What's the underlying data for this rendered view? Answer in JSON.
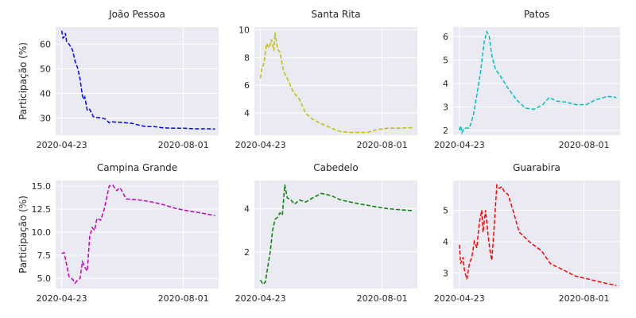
{
  "chart_data": [
    {
      "type": "line",
      "title": "João Pessoa",
      "ylabel": "Participação (%)",
      "color": "#0000ff",
      "xticks": [
        "2020-04-23",
        "2020-08-01"
      ],
      "yticks": [
        30,
        40,
        50,
        60
      ],
      "xlim": [
        "2020-04-18",
        "2020-08-30"
      ],
      "ylim": [
        23,
        67
      ],
      "grid": true,
      "points": [
        [
          "2020-04-23",
          65.5
        ],
        [
          "2020-04-24",
          62.5
        ],
        [
          "2020-04-25",
          63.0
        ],
        [
          "2020-04-26",
          64.5
        ],
        [
          "2020-04-27",
          61.0
        ],
        [
          "2020-04-29",
          60.0
        ],
        [
          "2020-05-01",
          58.5
        ],
        [
          "2020-05-02",
          57.5
        ],
        [
          "2020-05-04",
          53.0
        ],
        [
          "2020-05-06",
          50.5
        ],
        [
          "2020-05-08",
          46.0
        ],
        [
          "2020-05-10",
          39.0
        ],
        [
          "2020-05-11",
          37.5
        ],
        [
          "2020-05-12",
          38.5
        ],
        [
          "2020-05-14",
          33.0
        ],
        [
          "2020-05-16",
          33.5
        ],
        [
          "2020-05-19",
          30.5
        ],
        [
          "2020-05-22",
          30.2
        ],
        [
          "2020-05-26",
          30.0
        ],
        [
          "2020-05-29",
          29.5
        ],
        [
          "2020-06-01",
          28.0
        ],
        [
          "2020-06-03",
          28.5
        ],
        [
          "2020-06-06",
          28.3
        ],
        [
          "2020-06-10",
          28.2
        ],
        [
          "2020-06-15",
          28.0
        ],
        [
          "2020-06-20",
          27.8
        ],
        [
          "2020-06-26",
          27.0
        ],
        [
          "2020-07-01",
          26.5
        ],
        [
          "2020-07-08",
          26.5
        ],
        [
          "2020-07-15",
          26.0
        ],
        [
          "2020-07-22",
          25.8
        ],
        [
          "2020-08-01",
          25.8
        ],
        [
          "2020-08-10",
          25.6
        ],
        [
          "2020-08-20",
          25.6
        ],
        [
          "2020-08-27",
          25.5
        ]
      ]
    },
    {
      "type": "line",
      "title": "Santa Rita",
      "ylabel": "",
      "color": "#bfbf00",
      "xticks": [
        "2020-04-23",
        "2020-08-01"
      ],
      "yticks": [
        4,
        6,
        8,
        10
      ],
      "xlim": [
        "2020-04-18",
        "2020-08-30"
      ],
      "ylim": [
        2.4,
        10.2
      ],
      "grid": true,
      "points": [
        [
          "2020-04-23",
          6.5
        ],
        [
          "2020-04-24",
          7.2
        ],
        [
          "2020-04-26",
          7.6
        ],
        [
          "2020-04-28",
          9.0
        ],
        [
          "2020-04-30",
          8.7
        ],
        [
          "2020-05-02",
          9.3
        ],
        [
          "2020-05-04",
          8.5
        ],
        [
          "2020-05-05",
          9.8
        ],
        [
          "2020-05-07",
          8.6
        ],
        [
          "2020-05-09",
          8.4
        ],
        [
          "2020-05-12",
          7.0
        ],
        [
          "2020-05-15",
          6.5
        ],
        [
          "2020-05-20",
          5.5
        ],
        [
          "2020-05-25",
          5.0
        ],
        [
          "2020-05-30",
          4.0
        ],
        [
          "2020-06-04",
          3.6
        ],
        [
          "2020-06-10",
          3.3
        ],
        [
          "2020-06-18",
          3.0
        ],
        [
          "2020-06-26",
          2.7
        ],
        [
          "2020-07-04",
          2.6
        ],
        [
          "2020-07-12",
          2.6
        ],
        [
          "2020-07-20",
          2.6
        ],
        [
          "2020-07-28",
          2.8
        ],
        [
          "2020-08-05",
          2.9
        ],
        [
          "2020-08-15",
          2.9
        ],
        [
          "2020-08-27",
          2.95
        ]
      ]
    },
    {
      "type": "line",
      "title": "Patos",
      "ylabel": "",
      "color": "#00bfbf",
      "xticks": [
        "2020-04-23",
        "2020-08-01"
      ],
      "yticks": [
        2,
        3,
        4,
        5,
        6
      ],
      "xlim": [
        "2020-04-18",
        "2020-08-30"
      ],
      "ylim": [
        1.8,
        6.4
      ],
      "grid": true,
      "points": [
        [
          "2020-04-23",
          2.0
        ],
        [
          "2020-04-24",
          2.2
        ],
        [
          "2020-04-25",
          1.9
        ],
        [
          "2020-04-27",
          2.1
        ],
        [
          "2020-05-01",
          2.1
        ],
        [
          "2020-05-04",
          2.6
        ],
        [
          "2020-05-07",
          3.5
        ],
        [
          "2020-05-10",
          4.5
        ],
        [
          "2020-05-13",
          5.8
        ],
        [
          "2020-05-15",
          6.2
        ],
        [
          "2020-05-17",
          6.0
        ],
        [
          "2020-05-19",
          5.2
        ],
        [
          "2020-05-22",
          4.6
        ],
        [
          "2020-05-26",
          4.3
        ],
        [
          "2020-06-01",
          3.8
        ],
        [
          "2020-06-08",
          3.3
        ],
        [
          "2020-06-15",
          2.95
        ],
        [
          "2020-06-22",
          2.9
        ],
        [
          "2020-06-29",
          3.1
        ],
        [
          "2020-07-04",
          3.4
        ],
        [
          "2020-07-10",
          3.25
        ],
        [
          "2020-07-18",
          3.2
        ],
        [
          "2020-07-26",
          3.1
        ],
        [
          "2020-08-03",
          3.1
        ],
        [
          "2020-08-10",
          3.3
        ],
        [
          "2020-08-20",
          3.45
        ],
        [
          "2020-08-27",
          3.4
        ]
      ]
    },
    {
      "type": "line",
      "title": "Campina Grande",
      "ylabel": "Participação (%)",
      "color": "#bf00bf",
      "xticks": [
        "2020-04-23",
        "2020-08-01"
      ],
      "yticks": [
        5.0,
        7.5,
        10.0,
        12.5,
        15.0
      ],
      "ytick_labels": [
        "5.0",
        "7.5",
        "10.0",
        "12.5",
        "15.0"
      ],
      "xlim": [
        "2020-04-18",
        "2020-08-30"
      ],
      "ylim": [
        3.9,
        15.6
      ],
      "grid": true,
      "points": [
        [
          "2020-04-23",
          7.7
        ],
        [
          "2020-04-25",
          7.8
        ],
        [
          "2020-04-27",
          6.5
        ],
        [
          "2020-04-29",
          5.2
        ],
        [
          "2020-05-02",
          4.9
        ],
        [
          "2020-05-04",
          4.5
        ],
        [
          "2020-05-06",
          4.8
        ],
        [
          "2020-05-08",
          5.0
        ],
        [
          "2020-05-10",
          6.8
        ],
        [
          "2020-05-12",
          6.2
        ],
        [
          "2020-05-14",
          5.8
        ],
        [
          "2020-05-16",
          9.5
        ],
        [
          "2020-05-18",
          10.5
        ],
        [
          "2020-05-20",
          10.2
        ],
        [
          "2020-05-22",
          11.5
        ],
        [
          "2020-05-25",
          11.3
        ],
        [
          "2020-05-28",
          12.5
        ],
        [
          "2020-06-01",
          15.0
        ],
        [
          "2020-06-04",
          15.1
        ],
        [
          "2020-06-07",
          14.5
        ],
        [
          "2020-06-10",
          14.8
        ],
        [
          "2020-06-15",
          13.6
        ],
        [
          "2020-06-25",
          13.5
        ],
        [
          "2020-07-05",
          13.3
        ],
        [
          "2020-07-15",
          13.0
        ],
        [
          "2020-07-25",
          12.6
        ],
        [
          "2020-08-05",
          12.3
        ],
        [
          "2020-08-15",
          12.1
        ],
        [
          "2020-08-27",
          11.8
        ]
      ]
    },
    {
      "type": "line",
      "title": "Cabedelo",
      "ylabel": "",
      "color": "#008000",
      "xticks": [
        "2020-04-23",
        "2020-08-01"
      ],
      "yticks": [
        2,
        4
      ],
      "xlim": [
        "2020-04-18",
        "2020-08-30"
      ],
      "ylim": [
        0.3,
        5.3
      ],
      "grid": true,
      "points": [
        [
          "2020-04-23",
          0.7
        ],
        [
          "2020-04-25",
          0.5
        ],
        [
          "2020-04-27",
          0.6
        ],
        [
          "2020-04-29",
          1.3
        ],
        [
          "2020-05-01",
          2.0
        ],
        [
          "2020-05-03",
          3.0
        ],
        [
          "2020-05-05",
          3.5
        ],
        [
          "2020-05-07",
          3.6
        ],
        [
          "2020-05-09",
          3.8
        ],
        [
          "2020-05-11",
          3.7
        ],
        [
          "2020-05-13",
          5.1
        ],
        [
          "2020-05-15",
          4.5
        ],
        [
          "2020-05-18",
          4.4
        ],
        [
          "2020-05-21",
          4.2
        ],
        [
          "2020-05-25",
          4.4
        ],
        [
          "2020-05-30",
          4.3
        ],
        [
          "2020-06-05",
          4.5
        ],
        [
          "2020-06-12",
          4.7
        ],
        [
          "2020-06-20",
          4.6
        ],
        [
          "2020-06-28",
          4.4
        ],
        [
          "2020-07-06",
          4.3
        ],
        [
          "2020-07-15",
          4.2
        ],
        [
          "2020-07-25",
          4.1
        ],
        [
          "2020-08-05",
          4.0
        ],
        [
          "2020-08-15",
          3.95
        ],
        [
          "2020-08-27",
          3.9
        ]
      ]
    },
    {
      "type": "line",
      "title": "Guarabira",
      "ylabel": "",
      "color": "#ff0000",
      "xticks": [
        "2020-04-23",
        "2020-08-01"
      ],
      "yticks": [
        3,
        4,
        5
      ],
      "xlim": [
        "2020-04-18",
        "2020-08-30"
      ],
      "ylim": [
        2.5,
        5.95
      ],
      "grid": true,
      "points": [
        [
          "2020-04-23",
          3.9
        ],
        [
          "2020-04-24",
          3.3
        ],
        [
          "2020-04-26",
          3.5
        ],
        [
          "2020-04-27",
          3.1
        ],
        [
          "2020-04-29",
          2.8
        ],
        [
          "2020-05-01",
          3.3
        ],
        [
          "2020-05-03",
          3.5
        ],
        [
          "2020-05-05",
          4.0
        ],
        [
          "2020-05-07",
          3.8
        ],
        [
          "2020-05-09",
          4.6
        ],
        [
          "2020-05-11",
          5.0
        ],
        [
          "2020-05-12",
          4.3
        ],
        [
          "2020-05-14",
          5.0
        ],
        [
          "2020-05-16",
          4.2
        ],
        [
          "2020-05-18",
          3.6
        ],
        [
          "2020-05-19",
          3.4
        ],
        [
          "2020-05-21",
          4.5
        ],
        [
          "2020-05-23",
          5.8
        ],
        [
          "2020-05-25",
          5.7
        ],
        [
          "2020-05-27",
          5.75
        ],
        [
          "2020-05-29",
          5.6
        ],
        [
          "2020-06-01",
          5.5
        ],
        [
          "2020-06-05",
          5.0
        ],
        [
          "2020-06-10",
          4.3
        ],
        [
          "2020-06-18",
          4.0
        ],
        [
          "2020-06-28",
          3.7
        ],
        [
          "2020-07-05",
          3.3
        ],
        [
          "2020-07-15",
          3.1
        ],
        [
          "2020-07-25",
          2.9
        ],
        [
          "2020-08-05",
          2.8
        ],
        [
          "2020-08-15",
          2.7
        ],
        [
          "2020-08-27",
          2.6
        ]
      ]
    }
  ]
}
